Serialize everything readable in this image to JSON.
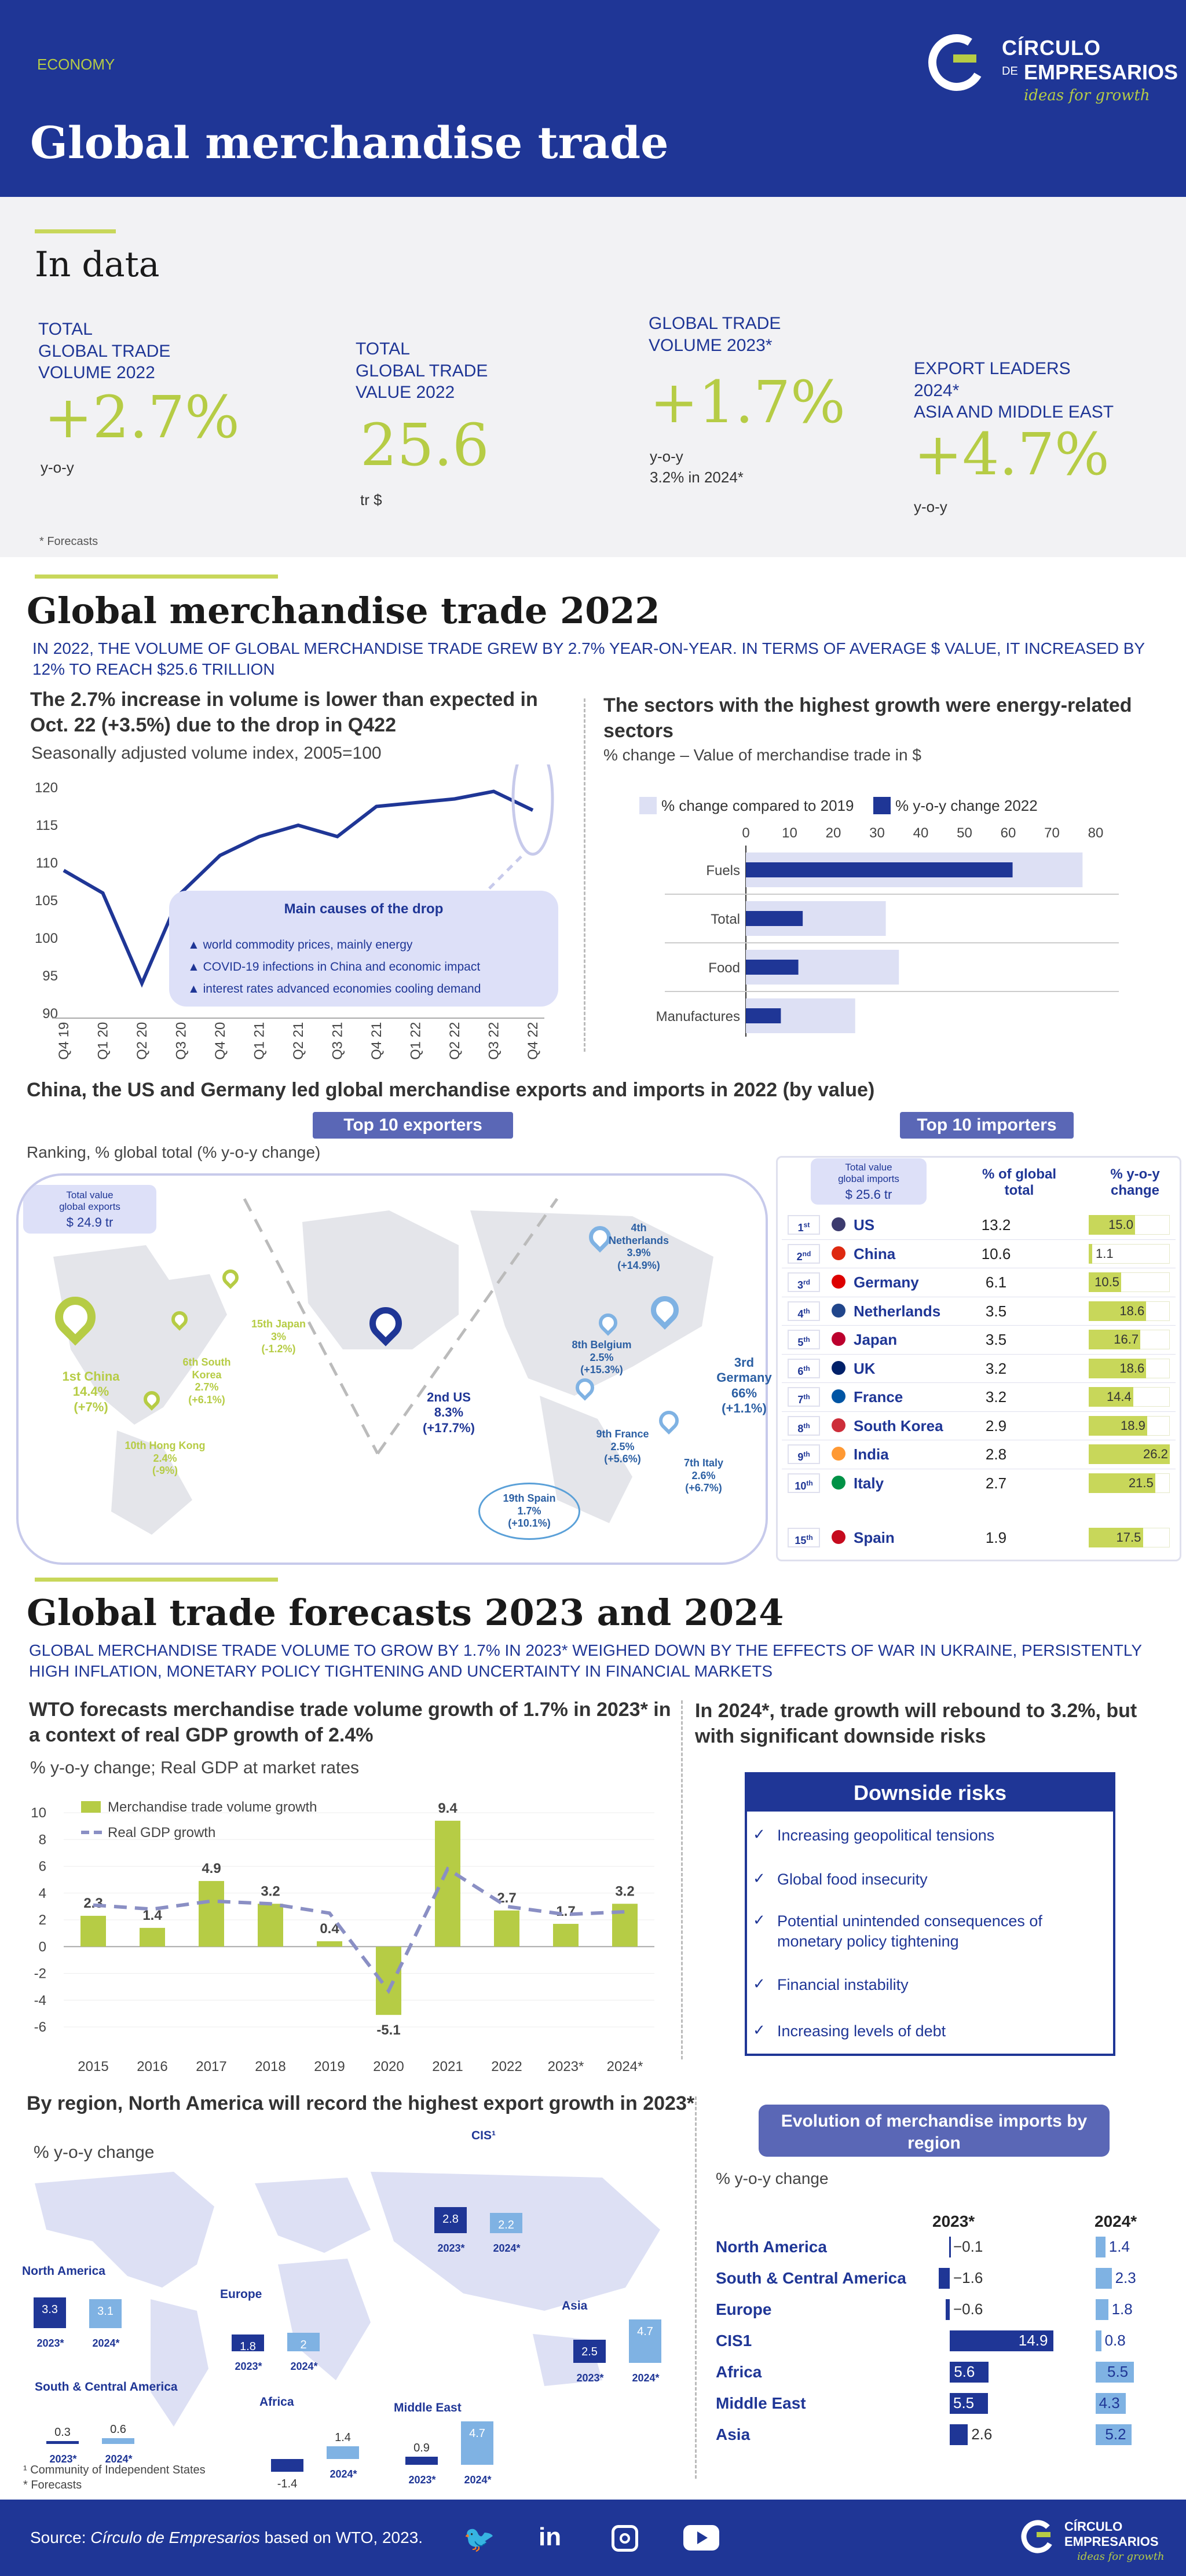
{
  "header": {
    "category": "ECONOMY",
    "title": "Global merchandise trade",
    "logo_line1": "CÍRCULO",
    "logo_line2a": "DE",
    "logo_line2b": "EMPRESARIOS",
    "tagline": "ideas for growth"
  },
  "indata": {
    "title": "In data",
    "kpis": [
      {
        "label": "TOTAL\nGLOBAL TRADE\nVOLUME 2022",
        "value": "+2.7%",
        "unit": "y-o-y"
      },
      {
        "label": "TOTAL\nGLOBAL TRADE\nVALUE 2022",
        "value": "25.6",
        "unit": "tr $"
      },
      {
        "label": "GLOBAL TRADE\nVOLUME 2023*",
        "value": "+1.7%",
        "unit": "y-o-y\n3.2% in 2024*"
      },
      {
        "label": "EXPORT LEADERS\n2024*\nASIA AND MIDDLE EAST",
        "value": "+4.7%",
        "unit": "y-o-y"
      }
    ],
    "footnote": "* Forecasts"
  },
  "sec2022": {
    "title": "Global merchandise trade 2022",
    "subtitle": "IN 2022, THE VOLUME OF GLOBAL MERCHANDISE TRADE GREW BY 2.7% YEAR-ON-YEAR. IN TERMS OF AVERAGE $ VALUE, IT INCREASED BY 12% TO REACH $25.6 TRILLION",
    "left_title": "The 2.7% increase in volume is lower than expected in Oct. 22 (+3.5%) due to the drop in Q422",
    "left_sub": "Seasonally adjusted volume index, 2005=100",
    "causes_title": "Main causes of the drop",
    "causes": [
      "world commodity prices, mainly energy",
      "COVID-19 infections in China and economic impact",
      "interest rates advanced economies cooling demand"
    ],
    "right_title": "The sectors with the highest growth were energy-related sectors",
    "right_sub": "% change – Value of merchandise trade in $",
    "legend_a": "% change compared to 2019",
    "legend_b": "% y-o-y change 2022"
  },
  "leaders": {
    "title": "China, the US and Germany led global merchandise exports and imports in 2022 (by value)",
    "btn_exp": "Top 10 exporters",
    "btn_imp": "Top 10 importers",
    "ranking_sub": "Ranking, % global total (% y-o-y change)",
    "exp_total_label": "Total value\nglobal exports",
    "exp_total": "$ 24.9 tr",
    "imp_total_label": "Total value\nglobal imports",
    "imp_total": "$ 25.6 tr",
    "col_pct": "% of global\ntotal",
    "col_yoy": "% y-o-y\nchange",
    "exporters": [
      {
        "t": "1st China",
        "v": "14.4%",
        "c": "(+7%)"
      },
      {
        "t": "2nd US",
        "v": "8.3%",
        "c": "(+17.7%)"
      },
      {
        "t": "3rd\nGermany",
        "v": "66%",
        "c": "(+1.1%)"
      },
      {
        "t": "4th\nNetherlands",
        "v": "3.9%",
        "c": "(+14.9%)"
      },
      {
        "t": "6th South\nKorea",
        "v": "2.7%",
        "c": "(+6.1%)"
      },
      {
        "t": "7th Italy",
        "v": "2.6%",
        "c": "(+6.7%)"
      },
      {
        "t": "8th Belgium",
        "v": "2.5%",
        "c": "(+15.3%)"
      },
      {
        "t": "9th France",
        "v": "2.5%",
        "c": "(+5.6%)"
      },
      {
        "t": "10th Hong Kong",
        "v": "2.4%",
        "c": "(-9%)"
      },
      {
        "t": "15th Japan",
        "v": "3%",
        "c": "(-1.2%)"
      },
      {
        "t": "19th Spain",
        "v": "1.7%",
        "c": "(+10.1%)"
      }
    ],
    "importers": [
      {
        "rank": "1",
        "sup": "st",
        "name": "US",
        "pct": "13.2",
        "yoy": 15.0,
        "yoy_label": "15.0",
        "flag": "#3c3b6e"
      },
      {
        "rank": "2",
        "sup": "nd",
        "name": "China",
        "pct": "10.6",
        "yoy": 1.1,
        "yoy_label": "1.1",
        "flag": "#de2910"
      },
      {
        "rank": "3",
        "sup": "rd",
        "name": "Germany",
        "pct": "6.1",
        "yoy": 10.5,
        "yoy_label": "10.5",
        "flag": "#dd0000"
      },
      {
        "rank": "4",
        "sup": "th",
        "name": "Netherlands",
        "pct": "3.5",
        "yoy": 18.6,
        "yoy_label": "18.6",
        "flag": "#21468b"
      },
      {
        "rank": "5",
        "sup": "th",
        "name": "Japan",
        "pct": "3.5",
        "yoy": 16.7,
        "yoy_label": "16.7",
        "flag": "#bc002d"
      },
      {
        "rank": "6",
        "sup": "th",
        "name": "UK",
        "pct": "3.2",
        "yoy": 18.6,
        "yoy_label": "18.6",
        "flag": "#012169"
      },
      {
        "rank": "7",
        "sup": "th",
        "name": "France",
        "pct": "3.2",
        "yoy": 14.4,
        "yoy_label": "14.4",
        "flag": "#0055a4"
      },
      {
        "rank": "8",
        "sup": "th",
        "name": "South Korea",
        "pct": "2.9",
        "yoy": 18.9,
        "yoy_label": "18.9",
        "flag": "#cd2e3a"
      },
      {
        "rank": "9",
        "sup": "th",
        "name": "India",
        "pct": "2.8",
        "yoy": 26.2,
        "yoy_label": "26.2",
        "flag": "#ff9933"
      },
      {
        "rank": "10",
        "sup": "th",
        "name": "Italy",
        "pct": "2.7",
        "yoy": 21.5,
        "yoy_label": "21.5",
        "flag": "#009246"
      },
      {
        "rank": "15",
        "sup": "th",
        "name": "Spain",
        "pct": "1.9",
        "yoy": 17.5,
        "yoy_label": "17.5",
        "flag": "#c60b1e"
      }
    ]
  },
  "forecasts": {
    "title": "Global trade forecasts 2023 and 2024",
    "subtitle": "GLOBAL MERCHANDISE TRADE VOLUME TO GROW BY 1.7% IN 2023* WEIGHED DOWN BY THE EFFECTS OF WAR IN UKRAINE, PERSISTENTLY HIGH INFLATION, MONETARY POLICY TIGHTENING AND UNCERTAINTY IN FINANCIAL MARKETS",
    "left_title": "WTO forecasts merchandise trade volume growth of 1.7% in 2023* in a context of real GDP growth of 2.4%",
    "left_sub": "% y-o-y change; Real GDP at market rates",
    "right_title": "In 2024*, trade growth will rebound to 3.2%, but with significant downside risks",
    "risks_title": "Downside risks",
    "risks": [
      "Increasing geopolitical tensions",
      "Global food insecurity",
      "Potential unintended consequences of monetary policy tightening",
      "Financial instability",
      "Increasing levels of debt"
    ]
  },
  "regions": {
    "title": "By region, North America will record the highest export growth in 2023*",
    "sub": "% y-o-y change",
    "footnote1": "¹ Community of Independent States",
    "footnote2": "* Forecasts",
    "btn": "Evolution of merchandise imports by region",
    "imp_sub": "% y-o-y change",
    "col_a": "2023*",
    "col_b": "2024*"
  },
  "footer": {
    "source_pre": "Source: ",
    "source_it": "Círculo de Empresarios",
    "source_post": " based on WTO, 2023."
  },
  "chart_data": [
    {
      "type": "line",
      "title": "The 2.7% increase in volume is lower than expected in Oct. 22 (+3.5%) due to the drop in Q422",
      "categories": [
        "Q4 19",
        "Q1 20",
        "Q2 20",
        "Q3 20",
        "Q4 20",
        "Q1 21",
        "Q2 21",
        "Q3 21",
        "Q4 21",
        "Q1 22",
        "Q2 22",
        "Q3 22",
        "Q4 22"
      ],
      "values": [
        109,
        106,
        94,
        106,
        111,
        113.5,
        115,
        113.5,
        117.5,
        118,
        118.5,
        119.5,
        117
      ],
      "ylim": [
        90,
        120
      ],
      "yticks": [
        90,
        95,
        100,
        105,
        110,
        115,
        120
      ]
    },
    {
      "type": "bar",
      "orientation": "horizontal",
      "categories": [
        "Fuels",
        "Total",
        "Food",
        "Manufactures"
      ],
      "series": [
        {
          "name": "% change compared to 2019",
          "values": [
            77,
            32,
            35,
            25
          ],
          "color": "#dde0f4"
        },
        {
          "name": "% y-o-y change 2022",
          "values": [
            61,
            13,
            12,
            8
          ],
          "color": "#1f3696"
        }
      ],
      "xlim": [
        0,
        80
      ],
      "xticks": [
        0,
        10,
        20,
        30,
        40,
        50,
        60,
        70,
        80
      ]
    },
    {
      "type": "bar",
      "categories": [
        "2015",
        "2016",
        "2017",
        "2018",
        "2019",
        "2020",
        "2021",
        "2022",
        "2023*",
        "2024*"
      ],
      "series": [
        {
          "name": "Merchandise trade volume growth",
          "values": [
            2.3,
            1.4,
            4.9,
            3.2,
            0.4,
            -5.1,
            9.4,
            2.7,
            1.7,
            3.2
          ],
          "labels": [
            "2.3",
            "1.4",
            "4.9",
            "3.2",
            "0.4",
            "-5.1",
            "9.4",
            "2.7",
            "1.7",
            "3.2"
          ],
          "color": "#b6cc45"
        },
        {
          "name": "Real GDP growth",
          "type": "line",
          "values": [
            3.1,
            2.8,
            3.4,
            3.2,
            2.5,
            -3.3,
            5.8,
            3.0,
            2.4,
            2.6
          ],
          "color": "#8a8fc4"
        }
      ],
      "ylim": [
        -6,
        10
      ],
      "yticks": [
        -6,
        -4,
        -2,
        0,
        2,
        4,
        6,
        8,
        10
      ]
    },
    {
      "type": "bar",
      "title": "By region, North America will record the highest export growth in 2023*",
      "groups": [
        {
          "name": "North America",
          "a": 3.3,
          "b": 3.1
        },
        {
          "name": "South & Central America",
          "a": 0.3,
          "b": 0.6
        },
        {
          "name": "Europe",
          "a": 1.8,
          "b": 2.0
        },
        {
          "name": "Africa",
          "a": -1.4,
          "b": 1.4
        },
        {
          "name": "Middle East",
          "a": 0.9,
          "b": 4.7
        },
        {
          "name": "Asia",
          "a": 2.5,
          "b": 4.7
        },
        {
          "name": "CIS¹",
          "a": 2.8,
          "b": 2.2
        }
      ],
      "series_names": [
        "2023*",
        "2024*"
      ]
    },
    {
      "type": "bar",
      "orientation": "horizontal",
      "title": "Evolution of merchandise imports by region",
      "categories": [
        "North America",
        "South & Central America",
        "Europe",
        "CIS1",
        "Africa",
        "Middle East",
        "Asia"
      ],
      "series": [
        {
          "name": "2023*",
          "values": [
            -0.1,
            -1.6,
            -0.6,
            14.9,
            5.6,
            5.5,
            2.6
          ],
          "labels": [
            "−0.1",
            "−1.6",
            "−0.6",
            "14.9",
            "5.6",
            "5.5",
            "2.6"
          ]
        },
        {
          "name": "2024*",
          "values": [
            1.4,
            2.3,
            1.8,
            0.8,
            5.5,
            4.3,
            5.2
          ],
          "labels": [
            "1.4",
            "2.3",
            "1.8",
            "0.8",
            "5.5",
            "4.3",
            "5.2"
          ]
        }
      ]
    }
  ]
}
